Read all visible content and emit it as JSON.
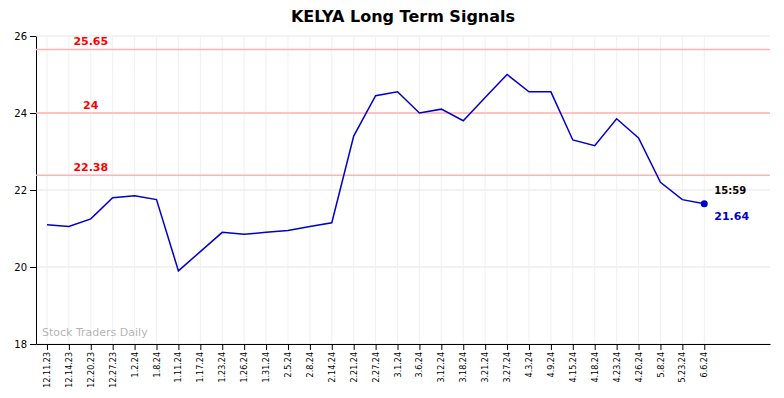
{
  "chart_data": {
    "type": "line",
    "title": "KELYA Long Term Signals",
    "watermark": "Stock Traders Daily",
    "categories": [
      "12.11.23",
      "12.14.23",
      "12.20.23",
      "12.27.23",
      "1.2.24",
      "1.8.24",
      "1.11.24",
      "1.17.24",
      "1.23.24",
      "1.26.24",
      "1.31.24",
      "2.5.24",
      "2.8.24",
      "2.14.24",
      "2.21.24",
      "2.27.24",
      "3.1.24",
      "3.6.24",
      "3.12.24",
      "3.18.24",
      "3.21.24",
      "3.27.24",
      "4.3.24",
      "4.9.24",
      "4.15.24",
      "4.18.24",
      "4.23.24",
      "4.26.24",
      "5.8.24",
      "5.23.24",
      "6.6.24"
    ],
    "values": [
      21.1,
      21.05,
      21.25,
      21.8,
      21.85,
      21.75,
      19.9,
      20.4,
      20.9,
      20.85,
      20.9,
      20.95,
      21.05,
      21.15,
      23.4,
      24.45,
      24.55,
      24.0,
      24.1,
      23.8,
      24.4,
      25.0,
      24.55,
      24.55,
      23.3,
      23.15,
      23.85,
      23.35,
      22.2,
      21.75,
      21.64
    ],
    "color": "#0000cc",
    "hlines": [
      {
        "value": 25.65,
        "label": "25.65",
        "color": "#ffb3b3",
        "label_color": "red"
      },
      {
        "value": 24.0,
        "label": "24",
        "color": "#ffb3b3",
        "label_color": "red"
      },
      {
        "value": 22.38,
        "label": "22.38",
        "color": "#ffb3b3",
        "label_color": "red"
      }
    ],
    "last_point": {
      "time": "15:59",
      "price": 21.64
    },
    "ylim": [
      18,
      26
    ],
    "yticks": [
      18,
      20,
      22,
      24,
      26
    ],
    "grid": true
  }
}
